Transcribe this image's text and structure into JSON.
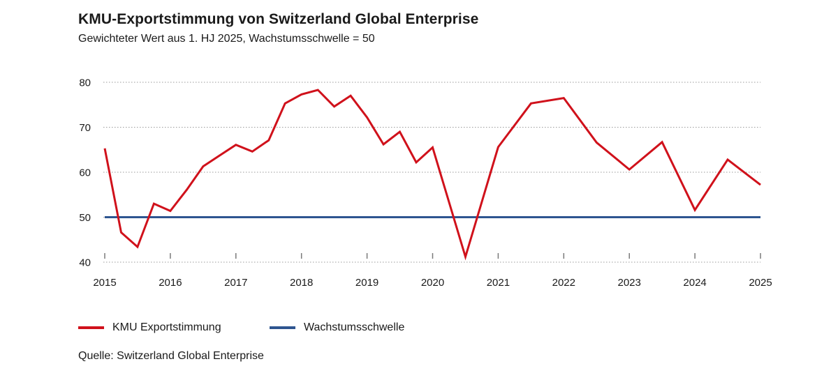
{
  "title": "KMU-Exportstimmung von Switzerland Global Enterprise",
  "subtitle": "Gewichteter Wert aus 1. HJ 2025, Wachstumsschwelle = 50",
  "source": "Quelle: Switzerland Global Enterprise",
  "colors": {
    "series": "#d0111b",
    "threshold": "#2e5590",
    "grid": "#9a9a9a",
    "axis": "#7a7a7a",
    "text": "#1a1a1a"
  },
  "chart_data": {
    "type": "line",
    "title": "KMU-Exportstimmung von Switzerland Global Enterprise",
    "subtitle": "Gewichteter Wert aus 1. HJ 2025, Wachstumsschwelle = 50",
    "xlabel": "",
    "ylabel": "",
    "xlim": [
      2015,
      2025
    ],
    "ylim": [
      40,
      80
    ],
    "yticks": [
      40,
      50,
      60,
      70,
      80
    ],
    "xticks": [
      "2015",
      "2016",
      "2017",
      "2018",
      "2019",
      "2020",
      "2021",
      "2022",
      "2023",
      "2024",
      "2025"
    ],
    "grid": "horizontal dotted",
    "legend_position": "bottom-left",
    "series": [
      {
        "name": "KMU Exportstimmung",
        "color": "#d0111b",
        "x": [
          2015.0,
          2015.25,
          2015.5,
          2015.75,
          2016.0,
          2016.25,
          2016.5,
          2016.75,
          2017.0,
          2017.25,
          2017.5,
          2017.75,
          2018.0,
          2018.25,
          2018.5,
          2018.75,
          2019.0,
          2019.25,
          2019.5,
          2019.75,
          2020.0,
          2020.5,
          2021.0,
          2021.5,
          2022.0,
          2022.5,
          2023.0,
          2023.5,
          2024.0,
          2024.5,
          2025.0
        ],
        "values": [
          65.3,
          46.6,
          43.4,
          53.0,
          51.4,
          56.1,
          61.3,
          63.7,
          66.1,
          64.6,
          67.1,
          75.3,
          77.3,
          78.3,
          74.6,
          77.0,
          72.2,
          66.2,
          69.0,
          62.2,
          65.5,
          41.2,
          65.6,
          75.3,
          76.5,
          66.6,
          60.6,
          66.7,
          51.6,
          62.8,
          57.2
        ]
      },
      {
        "name": "Wachstumsschwelle",
        "color": "#2e5590",
        "x": [
          2015.0,
          2025.0
        ],
        "values": [
          50,
          50
        ]
      }
    ]
  }
}
